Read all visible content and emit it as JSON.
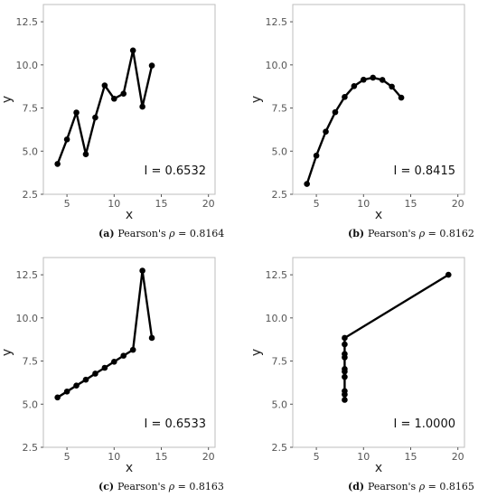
{
  "chart_data": [
    {
      "type": "line",
      "panel": "a",
      "xlabel": "x",
      "ylabel": "y",
      "xlim": [
        2.5,
        20.7
      ],
      "ylim": [
        2.5,
        13.5
      ],
      "xticks": [
        "5",
        "10",
        "15",
        "20"
      ],
      "yticks": [
        "2.5",
        "5.0",
        "7.5",
        "10.0",
        "12.5"
      ],
      "annotation": "I = 0.6532",
      "caption": {
        "label": "(a)",
        "prefix": "Pearson's ",
        "symbol": "ρ",
        "suffix": " = 0.8164"
      },
      "x": [
        4,
        5,
        6,
        7,
        8,
        9,
        10,
        11,
        12,
        13,
        14
      ],
      "y": [
        4.26,
        5.68,
        7.24,
        4.82,
        6.95,
        8.81,
        8.04,
        8.33,
        10.84,
        7.58,
        9.96
      ]
    },
    {
      "type": "line",
      "panel": "b",
      "xlabel": "x",
      "ylabel": "y",
      "xlim": [
        2.5,
        20.7
      ],
      "ylim": [
        2.5,
        13.5
      ],
      "xticks": [
        "5",
        "10",
        "15",
        "20"
      ],
      "yticks": [
        "2.5",
        "5.0",
        "7.5",
        "10.0",
        "12.5"
      ],
      "annotation": "I = 0.8415",
      "caption": {
        "label": "(b)",
        "prefix": "Pearson's ",
        "symbol": "ρ",
        "suffix": " = 0.8162"
      },
      "x": [
        4,
        5,
        6,
        7,
        8,
        9,
        10,
        11,
        12,
        13,
        14
      ],
      "y": [
        3.1,
        4.74,
        6.13,
        7.26,
        8.14,
        8.77,
        9.14,
        9.26,
        9.13,
        8.74,
        8.1
      ]
    },
    {
      "type": "line",
      "panel": "c",
      "xlabel": "x",
      "ylabel": "y",
      "xlim": [
        2.5,
        20.7
      ],
      "ylim": [
        2.5,
        13.5
      ],
      "xticks": [
        "5",
        "10",
        "15",
        "20"
      ],
      "yticks": [
        "2.5",
        "5.0",
        "7.5",
        "10.0",
        "12.5"
      ],
      "annotation": "I = 0.6533",
      "caption": {
        "label": "(c)",
        "prefix": "Pearson's ",
        "symbol": "ρ",
        "suffix": " = 0.8163"
      },
      "x": [
        4,
        5,
        6,
        7,
        8,
        9,
        10,
        11,
        12,
        13,
        14
      ],
      "y": [
        5.39,
        5.73,
        6.08,
        6.42,
        6.77,
        7.11,
        7.46,
        7.81,
        8.15,
        12.74,
        8.84
      ]
    },
    {
      "type": "line",
      "panel": "d",
      "xlabel": "x",
      "ylabel": "y",
      "xlim": [
        2.5,
        20.7
      ],
      "ylim": [
        2.5,
        13.5
      ],
      "xticks": [
        "5",
        "10",
        "15",
        "20"
      ],
      "yticks": [
        "2.5",
        "5.0",
        "7.5",
        "10.0",
        "12.5"
      ],
      "annotation": "I = 1.0000",
      "caption": {
        "label": "(d)",
        "prefix": "Pearson's ",
        "symbol": "ρ",
        "suffix": " = 0.8165"
      },
      "x": [
        8,
        8,
        8,
        8,
        8,
        8,
        8,
        8,
        8,
        8,
        19
      ],
      "y": [
        5.25,
        5.56,
        5.76,
        6.58,
        6.89,
        7.04,
        7.71,
        7.91,
        8.47,
        8.84,
        12.5
      ]
    }
  ]
}
